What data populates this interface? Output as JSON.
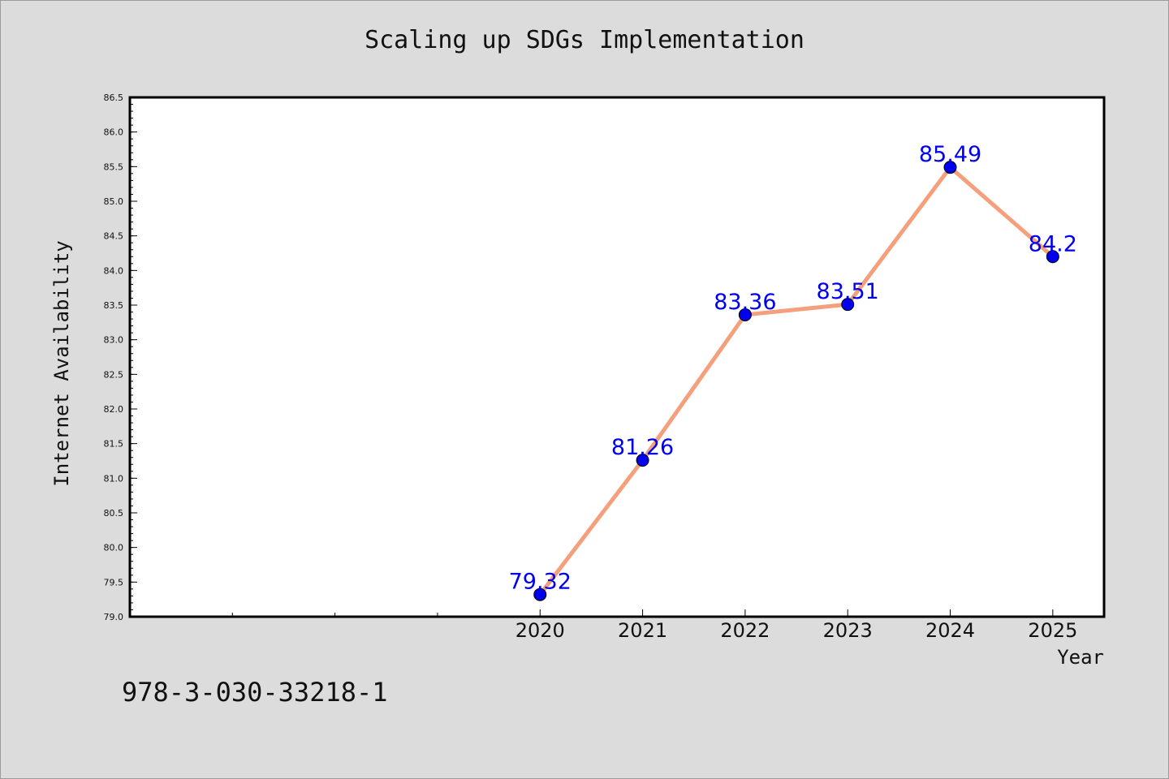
{
  "chart_data": {
    "type": "line",
    "title": "Scaling up SDGs Implementation",
    "xlabel": "Year",
    "ylabel": "Internet Availability",
    "x": [
      2020,
      2021,
      2022,
      2023,
      2024,
      2025
    ],
    "x_tick_labels": [
      "2020",
      "2021",
      "2022",
      "2023",
      "2024",
      "2025"
    ],
    "series": [
      {
        "values": [
          79.32,
          81.26,
          83.36,
          83.51,
          85.49,
          84.2
        ],
        "data_labels": [
          "79.32",
          "81.26",
          "83.36",
          "83.51",
          "85.49",
          "84.2"
        ],
        "color": "#f4a07c",
        "marker_color": "#0000ee"
      }
    ],
    "xlim": [
      2016,
      2025.5
    ],
    "ylim": [
      79.0,
      86.5
    ],
    "y_tick_labels": [
      "79.0",
      "79.5",
      "80.0",
      "80.5",
      "81.0",
      "81.5",
      "82.0",
      "82.5",
      "83.0",
      "83.5",
      "84.0",
      "84.5",
      "85.0",
      "85.5",
      "86.0",
      "86.5"
    ],
    "grid": false,
    "legend": "none"
  },
  "footer": {
    "isbn": "978-3-030-33218-1"
  }
}
